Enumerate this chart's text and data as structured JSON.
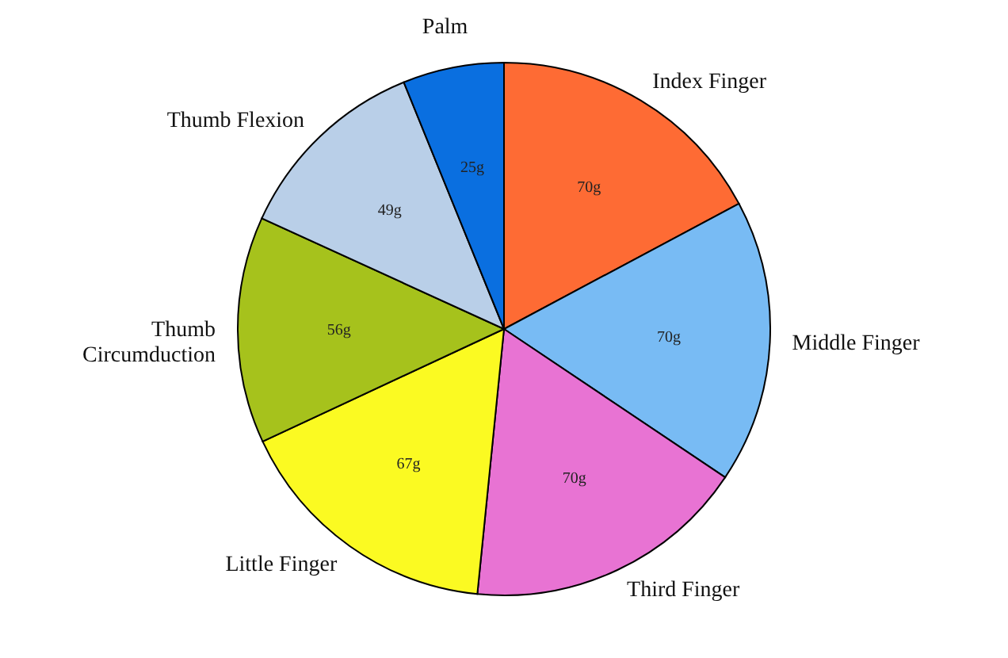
{
  "chart_data": {
    "type": "pie",
    "categories": [
      "Index Finger",
      "Middle Finger",
      "Third Finger",
      "Little Finger",
      "Thumb Circumduction",
      "Thumb Flexion",
      "Palm"
    ],
    "values": [
      70,
      70,
      70,
      67,
      56,
      49,
      25
    ],
    "value_labels": [
      "70g",
      "70g",
      "70g",
      "67g",
      "56g",
      "49g",
      "25g"
    ],
    "colors": [
      "#fe6b34",
      "#78bbf4",
      "#e873d3",
      "#fbfa22",
      "#a6c21c",
      "#b9cfe8",
      "#0a6fe0"
    ],
    "legend": false
  }
}
